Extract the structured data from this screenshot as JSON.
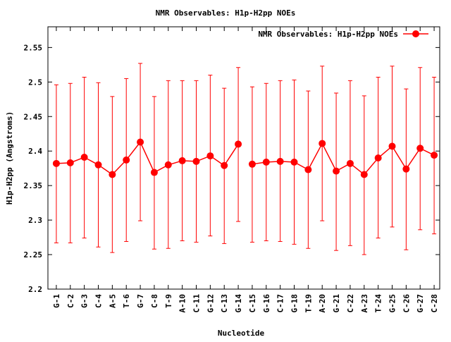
{
  "chart_data": {
    "type": "line",
    "title": "NMR Observables: H1p-H2pp NOEs",
    "xlabel": "Nucleotide",
    "ylabel": "H1p-H2pp (Angstroms)",
    "ylim": [
      2.2,
      2.58
    ],
    "yticks": [
      "2.2",
      "2.25",
      "2.3",
      "2.35",
      "2.4",
      "2.45",
      "2.5",
      "2.55"
    ],
    "ytick_values": [
      2.2,
      2.25,
      2.3,
      2.35,
      2.4,
      2.45,
      2.5,
      2.55
    ],
    "grid": false,
    "legend_position": "top-right",
    "color": "#ff0000",
    "categories": [
      "G-1",
      "C-2",
      "G-3",
      "C-4",
      "A-5",
      "T-6",
      "G-7",
      "C-8",
      "T-9",
      "A-10",
      "C-11",
      "G-12",
      "C-13",
      "G-14",
      "C-15",
      "G-16",
      "C-17",
      "G-18",
      "T-19",
      "A-20",
      "G-21",
      "C-22",
      "A-23",
      "T-24",
      "G-25",
      "C-26",
      "G-27",
      "C-28"
    ],
    "series": [
      {
        "name": "NMR Observables: H1p-H2pp NOEs",
        "values": [
          2.382,
          2.383,
          2.391,
          2.38,
          2.366,
          2.387,
          2.413,
          2.369,
          2.38,
          2.386,
          2.385,
          2.393,
          2.379,
          2.41,
          2.381,
          2.384,
          2.385,
          2.384,
          2.373,
          2.411,
          2.371,
          2.382,
          2.366,
          2.39,
          2.407,
          2.374,
          2.404,
          2.394
        ],
        "err_low": [
          2.267,
          2.267,
          2.274,
          2.261,
          2.253,
          2.269,
          2.299,
          2.258,
          2.259,
          2.27,
          2.268,
          2.277,
          2.266,
          2.298,
          2.268,
          2.27,
          2.269,
          2.265,
          2.259,
          2.299,
          2.256,
          2.263,
          2.25,
          2.274,
          2.29,
          2.257,
          2.286,
          2.28
        ],
        "err_high": [
          2.496,
          2.498,
          2.507,
          2.499,
          2.479,
          2.505,
          2.527,
          2.479,
          2.502,
          2.502,
          2.502,
          2.51,
          2.491,
          2.521,
          2.493,
          2.498,
          2.502,
          2.503,
          2.487,
          2.523,
          2.484,
          2.502,
          2.48,
          2.507,
          2.523,
          2.49,
          2.521,
          2.507
        ]
      }
    ]
  }
}
